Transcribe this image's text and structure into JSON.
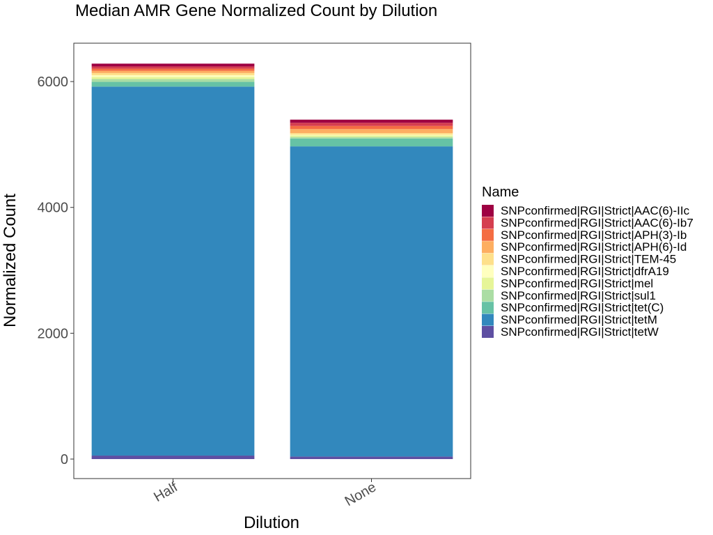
{
  "chart_data": {
    "type": "bar",
    "stacked": true,
    "title": "Median AMR Gene Normalized Count by Dilution",
    "xlabel": "Dilution",
    "ylabel": "Normalized Count",
    "categories": [
      "Half",
      "None"
    ],
    "ylim": [
      -310,
      6610
    ],
    "yticks": [
      0,
      2000,
      4000,
      6000
    ],
    "grid": false,
    "legend": {
      "title": "Name",
      "position": "right"
    },
    "series": [
      {
        "name": "SNPconfirmed|RGI|Strict|tetW",
        "color": "#5E4FA2",
        "values": [
          55,
          40
        ]
      },
      {
        "name": "SNPconfirmed|RGI|Strict|tetM",
        "color": "#3288BD",
        "values": [
          5865,
          4930
        ]
      },
      {
        "name": "SNPconfirmed|RGI|Strict|tet(C)",
        "color": "#66C2A5",
        "values": [
          75,
          125
        ]
      },
      {
        "name": "SNPconfirmed|RGI|Strict|sul1",
        "color": "#ABDDA4",
        "values": [
          45,
          25
        ]
      },
      {
        "name": "SNPconfirmed|RGI|Strict|mel",
        "color": "#E6F598",
        "values": [
          35,
          25
        ]
      },
      {
        "name": "SNPconfirmed|RGI|Strict|dfrA19",
        "color": "#FFFFBF",
        "values": [
          25,
          10
        ]
      },
      {
        "name": "SNPconfirmed|RGI|Strict|TEM-45",
        "color": "#FEE08B",
        "values": [
          35,
          25
        ]
      },
      {
        "name": "SNPconfirmed|RGI|Strict|APH(6)-Id",
        "color": "#FDAE61",
        "values": [
          35,
          65
        ]
      },
      {
        "name": "SNPconfirmed|RGI|Strict|APH(3)-Ib",
        "color": "#F46D43",
        "values": [
          35,
          50
        ]
      },
      {
        "name": "SNPconfirmed|RGI|Strict|AAC(6)-Ib7",
        "color": "#D53E4F",
        "values": [
          35,
          50
        ]
      },
      {
        "name": "SNPconfirmed|RGI|Strict|AAC(6)-IIc",
        "color": "#9E0142",
        "values": [
          45,
          50
        ]
      }
    ]
  }
}
